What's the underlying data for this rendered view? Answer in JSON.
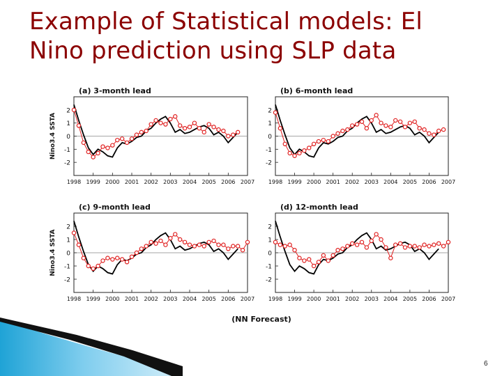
{
  "slide": {
    "title_line1": "Example of Statistical models: El",
    "title_line2": "Nino prediction using SLP data",
    "footer_label": "(NN Forecast)",
    "page_number": "6"
  },
  "colors": {
    "title": "#8b0000",
    "observed": "#000000",
    "forecast": "#e02020",
    "accent": "#1fa3d6"
  },
  "chart_data": [
    {
      "type": "line",
      "title": "(a) 3-month lead",
      "ylabel": "Nino3.4 SSTA",
      "xlabel": "",
      "xlim": [
        1998,
        2007
      ],
      "ylim": [
        -3,
        3
      ],
      "xticks": [
        1998,
        1999,
        2000,
        2001,
        2002,
        2003,
        2004,
        2005,
        2006,
        2007
      ],
      "yticks": [
        -2,
        -1,
        0,
        1,
        2
      ],
      "grid": false,
      "series": [
        {
          "style": "solid-black",
          "x": [
            1998.0,
            1998.25,
            1998.5,
            1998.75,
            1999.0,
            1999.25,
            1999.5,
            1999.75,
            2000.0,
            2000.25,
            2000.5,
            2000.75,
            2001.0,
            2001.25,
            2001.5,
            2001.75,
            2002.0,
            2002.25,
            2002.5,
            2002.75,
            2003.0,
            2003.25,
            2003.5,
            2003.75,
            2004.0,
            2004.25,
            2004.5,
            2004.75,
            2005.0,
            2005.25,
            2005.5,
            2005.75,
            2006.0,
            2006.25,
            2006.5
          ],
          "y": [
            2.4,
            1.2,
            0.1,
            -0.9,
            -1.4,
            -1.0,
            -1.2,
            -1.5,
            -1.6,
            -0.9,
            -0.5,
            -0.6,
            -0.4,
            -0.1,
            0.0,
            0.4,
            0.6,
            1.0,
            1.3,
            1.5,
            1.0,
            0.3,
            0.5,
            0.2,
            0.3,
            0.5,
            0.7,
            0.8,
            0.6,
            0.1,
            0.3,
            0.0,
            -0.5,
            -0.1,
            0.3
          ]
        },
        {
          "style": "red-circles",
          "x": [
            1998.0,
            1998.25,
            1998.5,
            1998.75,
            1999.0,
            1999.25,
            1999.5,
            1999.75,
            2000.0,
            2000.25,
            2000.5,
            2000.75,
            2001.0,
            2001.25,
            2001.5,
            2001.75,
            2002.0,
            2002.25,
            2002.5,
            2002.75,
            2003.0,
            2003.25,
            2003.5,
            2003.75,
            2004.0,
            2004.25,
            2004.5,
            2004.75,
            2005.0,
            2005.25,
            2005.5,
            2005.75,
            2006.0,
            2006.25,
            2006.5
          ],
          "y": [
            2.0,
            0.8,
            -0.5,
            -1.2,
            -1.6,
            -1.3,
            -0.8,
            -0.9,
            -0.7,
            -0.3,
            -0.2,
            -0.5,
            -0.2,
            0.1,
            0.3,
            0.4,
            0.9,
            1.2,
            1.0,
            0.9,
            1.3,
            1.5,
            0.8,
            0.6,
            0.7,
            1.0,
            0.6,
            0.3,
            0.9,
            0.7,
            0.5,
            0.4,
            0.0,
            0.1,
            0.3
          ]
        }
      ]
    },
    {
      "type": "line",
      "title": "(b) 6-month lead",
      "ylabel": "",
      "xlabel": "",
      "xlim": [
        1998,
        2007
      ],
      "ylim": [
        -3,
        3
      ],
      "xticks": [
        1998,
        1999,
        2000,
        2001,
        2002,
        2003,
        2004,
        2005,
        2006,
        2007
      ],
      "yticks": [
        -2,
        -1,
        0,
        1,
        2
      ],
      "grid": false,
      "series": [
        {
          "style": "solid-black",
          "x": [
            1998.0,
            1998.25,
            1998.5,
            1998.75,
            1999.0,
            1999.25,
            1999.5,
            1999.75,
            2000.0,
            2000.25,
            2000.5,
            2000.75,
            2001.0,
            2001.25,
            2001.5,
            2001.75,
            2002.0,
            2002.25,
            2002.5,
            2002.75,
            2003.0,
            2003.25,
            2003.5,
            2003.75,
            2004.0,
            2004.25,
            2004.5,
            2004.75,
            2005.0,
            2005.25,
            2005.5,
            2005.75,
            2006.0,
            2006.25,
            2006.5
          ],
          "y": [
            2.4,
            1.2,
            0.1,
            -0.9,
            -1.4,
            -1.0,
            -1.2,
            -1.5,
            -1.6,
            -0.9,
            -0.5,
            -0.6,
            -0.4,
            -0.1,
            0.0,
            0.4,
            0.6,
            1.0,
            1.3,
            1.5,
            1.0,
            0.3,
            0.5,
            0.2,
            0.3,
            0.5,
            0.7,
            0.8,
            0.6,
            0.1,
            0.3,
            0.0,
            -0.5,
            -0.1,
            0.3
          ]
        },
        {
          "style": "red-circles",
          "x": [
            1998.0,
            1998.25,
            1998.5,
            1998.75,
            1999.0,
            1999.25,
            1999.5,
            1999.75,
            2000.0,
            2000.25,
            2000.5,
            2000.75,
            2001.0,
            2001.25,
            2001.5,
            2001.75,
            2002.0,
            2002.25,
            2002.5,
            2002.75,
            2003.0,
            2003.25,
            2003.5,
            2003.75,
            2004.0,
            2004.25,
            2004.5,
            2004.75,
            2005.0,
            2005.25,
            2005.5,
            2005.75,
            2006.0,
            2006.25,
            2006.5,
            2006.75
          ],
          "y": [
            1.8,
            0.6,
            -0.6,
            -1.3,
            -1.5,
            -1.3,
            -1.1,
            -0.9,
            -0.6,
            -0.4,
            -0.3,
            -0.4,
            0.0,
            0.2,
            0.4,
            0.5,
            0.8,
            0.9,
            1.1,
            0.6,
            1.2,
            1.6,
            1.0,
            0.8,
            0.7,
            1.2,
            1.1,
            0.7,
            1.0,
            1.1,
            0.6,
            0.5,
            0.2,
            0.1,
            0.4,
            0.5
          ]
        }
      ]
    },
    {
      "type": "line",
      "title": "(c) 9-month lead",
      "ylabel": "Nino3.4 SSTA",
      "xlabel": "",
      "xlim": [
        1998,
        2007
      ],
      "ylim": [
        -3,
        3
      ],
      "xticks": [
        1998,
        1999,
        2000,
        2001,
        2002,
        2003,
        2004,
        2005,
        2006,
        2007
      ],
      "yticks": [
        -2,
        -1,
        0,
        1,
        2
      ],
      "grid": false,
      "series": [
        {
          "style": "solid-black",
          "x": [
            1998.0,
            1998.25,
            1998.5,
            1998.75,
            1999.0,
            1999.25,
            1999.5,
            1999.75,
            2000.0,
            2000.25,
            2000.5,
            2000.75,
            2001.0,
            2001.25,
            2001.5,
            2001.75,
            2002.0,
            2002.25,
            2002.5,
            2002.75,
            2003.0,
            2003.25,
            2003.5,
            2003.75,
            2004.0,
            2004.25,
            2004.5,
            2004.75,
            2005.0,
            2005.25,
            2005.5,
            2005.75,
            2006.0,
            2006.25,
            2006.5
          ],
          "y": [
            2.4,
            1.2,
            0.1,
            -0.9,
            -1.4,
            -1.0,
            -1.2,
            -1.5,
            -1.6,
            -0.9,
            -0.5,
            -0.6,
            -0.4,
            -0.1,
            0.0,
            0.4,
            0.6,
            1.0,
            1.3,
            1.5,
            1.0,
            0.3,
            0.5,
            0.2,
            0.3,
            0.5,
            0.7,
            0.8,
            0.6,
            0.1,
            0.3,
            0.0,
            -0.5,
            -0.1,
            0.3
          ]
        },
        {
          "style": "red-circles",
          "x": [
            1998.0,
            1998.25,
            1998.5,
            1998.75,
            1999.0,
            1999.25,
            1999.5,
            1999.75,
            2000.0,
            2000.25,
            2000.5,
            2000.75,
            2001.0,
            2001.25,
            2001.5,
            2001.75,
            2002.0,
            2002.25,
            2002.5,
            2002.75,
            2003.0,
            2003.25,
            2003.5,
            2003.75,
            2004.0,
            2004.25,
            2004.5,
            2004.75,
            2005.0,
            2005.25,
            2005.5,
            2005.75,
            2006.0,
            2006.25,
            2006.5,
            2006.75,
            2007.0
          ],
          "y": [
            1.5,
            0.6,
            -0.4,
            -1.0,
            -1.2,
            -1.0,
            -0.6,
            -0.4,
            -0.5,
            -0.4,
            -0.5,
            -0.7,
            -0.3,
            0.0,
            0.3,
            0.5,
            0.8,
            0.7,
            0.9,
            0.6,
            1.1,
            1.4,
            1.0,
            0.8,
            0.6,
            0.5,
            0.6,
            0.5,
            0.8,
            0.9,
            0.6,
            0.6,
            0.3,
            0.5,
            0.5,
            0.2,
            0.8
          ]
        }
      ]
    },
    {
      "type": "line",
      "title": "(d) 12-month lead",
      "ylabel": "",
      "xlabel": "",
      "xlim": [
        1998,
        2007
      ],
      "ylim": [
        -3,
        3
      ],
      "xticks": [
        1998,
        1999,
        2000,
        2001,
        2002,
        2003,
        2004,
        2005,
        2006,
        2007
      ],
      "yticks": [
        -2,
        -1,
        0,
        1,
        2
      ],
      "grid": false,
      "series": [
        {
          "style": "solid-black",
          "x": [
            1998.0,
            1998.25,
            1998.5,
            1998.75,
            1999.0,
            1999.25,
            1999.5,
            1999.75,
            2000.0,
            2000.25,
            2000.5,
            2000.75,
            2001.0,
            2001.25,
            2001.5,
            2001.75,
            2002.0,
            2002.25,
            2002.5,
            2002.75,
            2003.0,
            2003.25,
            2003.5,
            2003.75,
            2004.0,
            2004.25,
            2004.5,
            2004.75,
            2005.0,
            2005.25,
            2005.5,
            2005.75,
            2006.0,
            2006.25,
            2006.5
          ],
          "y": [
            2.4,
            1.2,
            0.1,
            -0.9,
            -1.4,
            -1.0,
            -1.2,
            -1.5,
            -1.6,
            -0.9,
            -0.5,
            -0.6,
            -0.4,
            -0.1,
            0.0,
            0.4,
            0.6,
            1.0,
            1.3,
            1.5,
            1.0,
            0.3,
            0.5,
            0.2,
            0.3,
            0.5,
            0.7,
            0.8,
            0.6,
            0.1,
            0.3,
            0.0,
            -0.5,
            -0.1,
            0.3
          ]
        },
        {
          "style": "red-circles",
          "x": [
            1998.0,
            1998.25,
            1998.5,
            1998.75,
            1999.0,
            1999.25,
            1999.5,
            1999.75,
            2000.0,
            2000.25,
            2000.5,
            2000.75,
            2001.0,
            2001.25,
            2001.5,
            2001.75,
            2002.0,
            2002.25,
            2002.5,
            2002.75,
            2003.0,
            2003.25,
            2003.5,
            2003.75,
            2004.0,
            2004.25,
            2004.5,
            2004.75,
            2005.0,
            2005.25,
            2005.5,
            2005.75,
            2006.0,
            2006.25,
            2006.5,
            2006.75,
            2007.0
          ],
          "y": [
            0.8,
            0.6,
            0.5,
            0.6,
            0.2,
            -0.4,
            -0.6,
            -0.5,
            -1.0,
            -0.7,
            -0.2,
            -0.6,
            -0.2,
            0.2,
            0.3,
            0.5,
            0.7,
            0.6,
            0.8,
            0.4,
            0.9,
            1.4,
            1.0,
            0.4,
            -0.4,
            0.6,
            0.7,
            0.4,
            0.5,
            0.5,
            0.4,
            0.6,
            0.5,
            0.6,
            0.7,
            0.5,
            0.8
          ]
        }
      ]
    }
  ]
}
